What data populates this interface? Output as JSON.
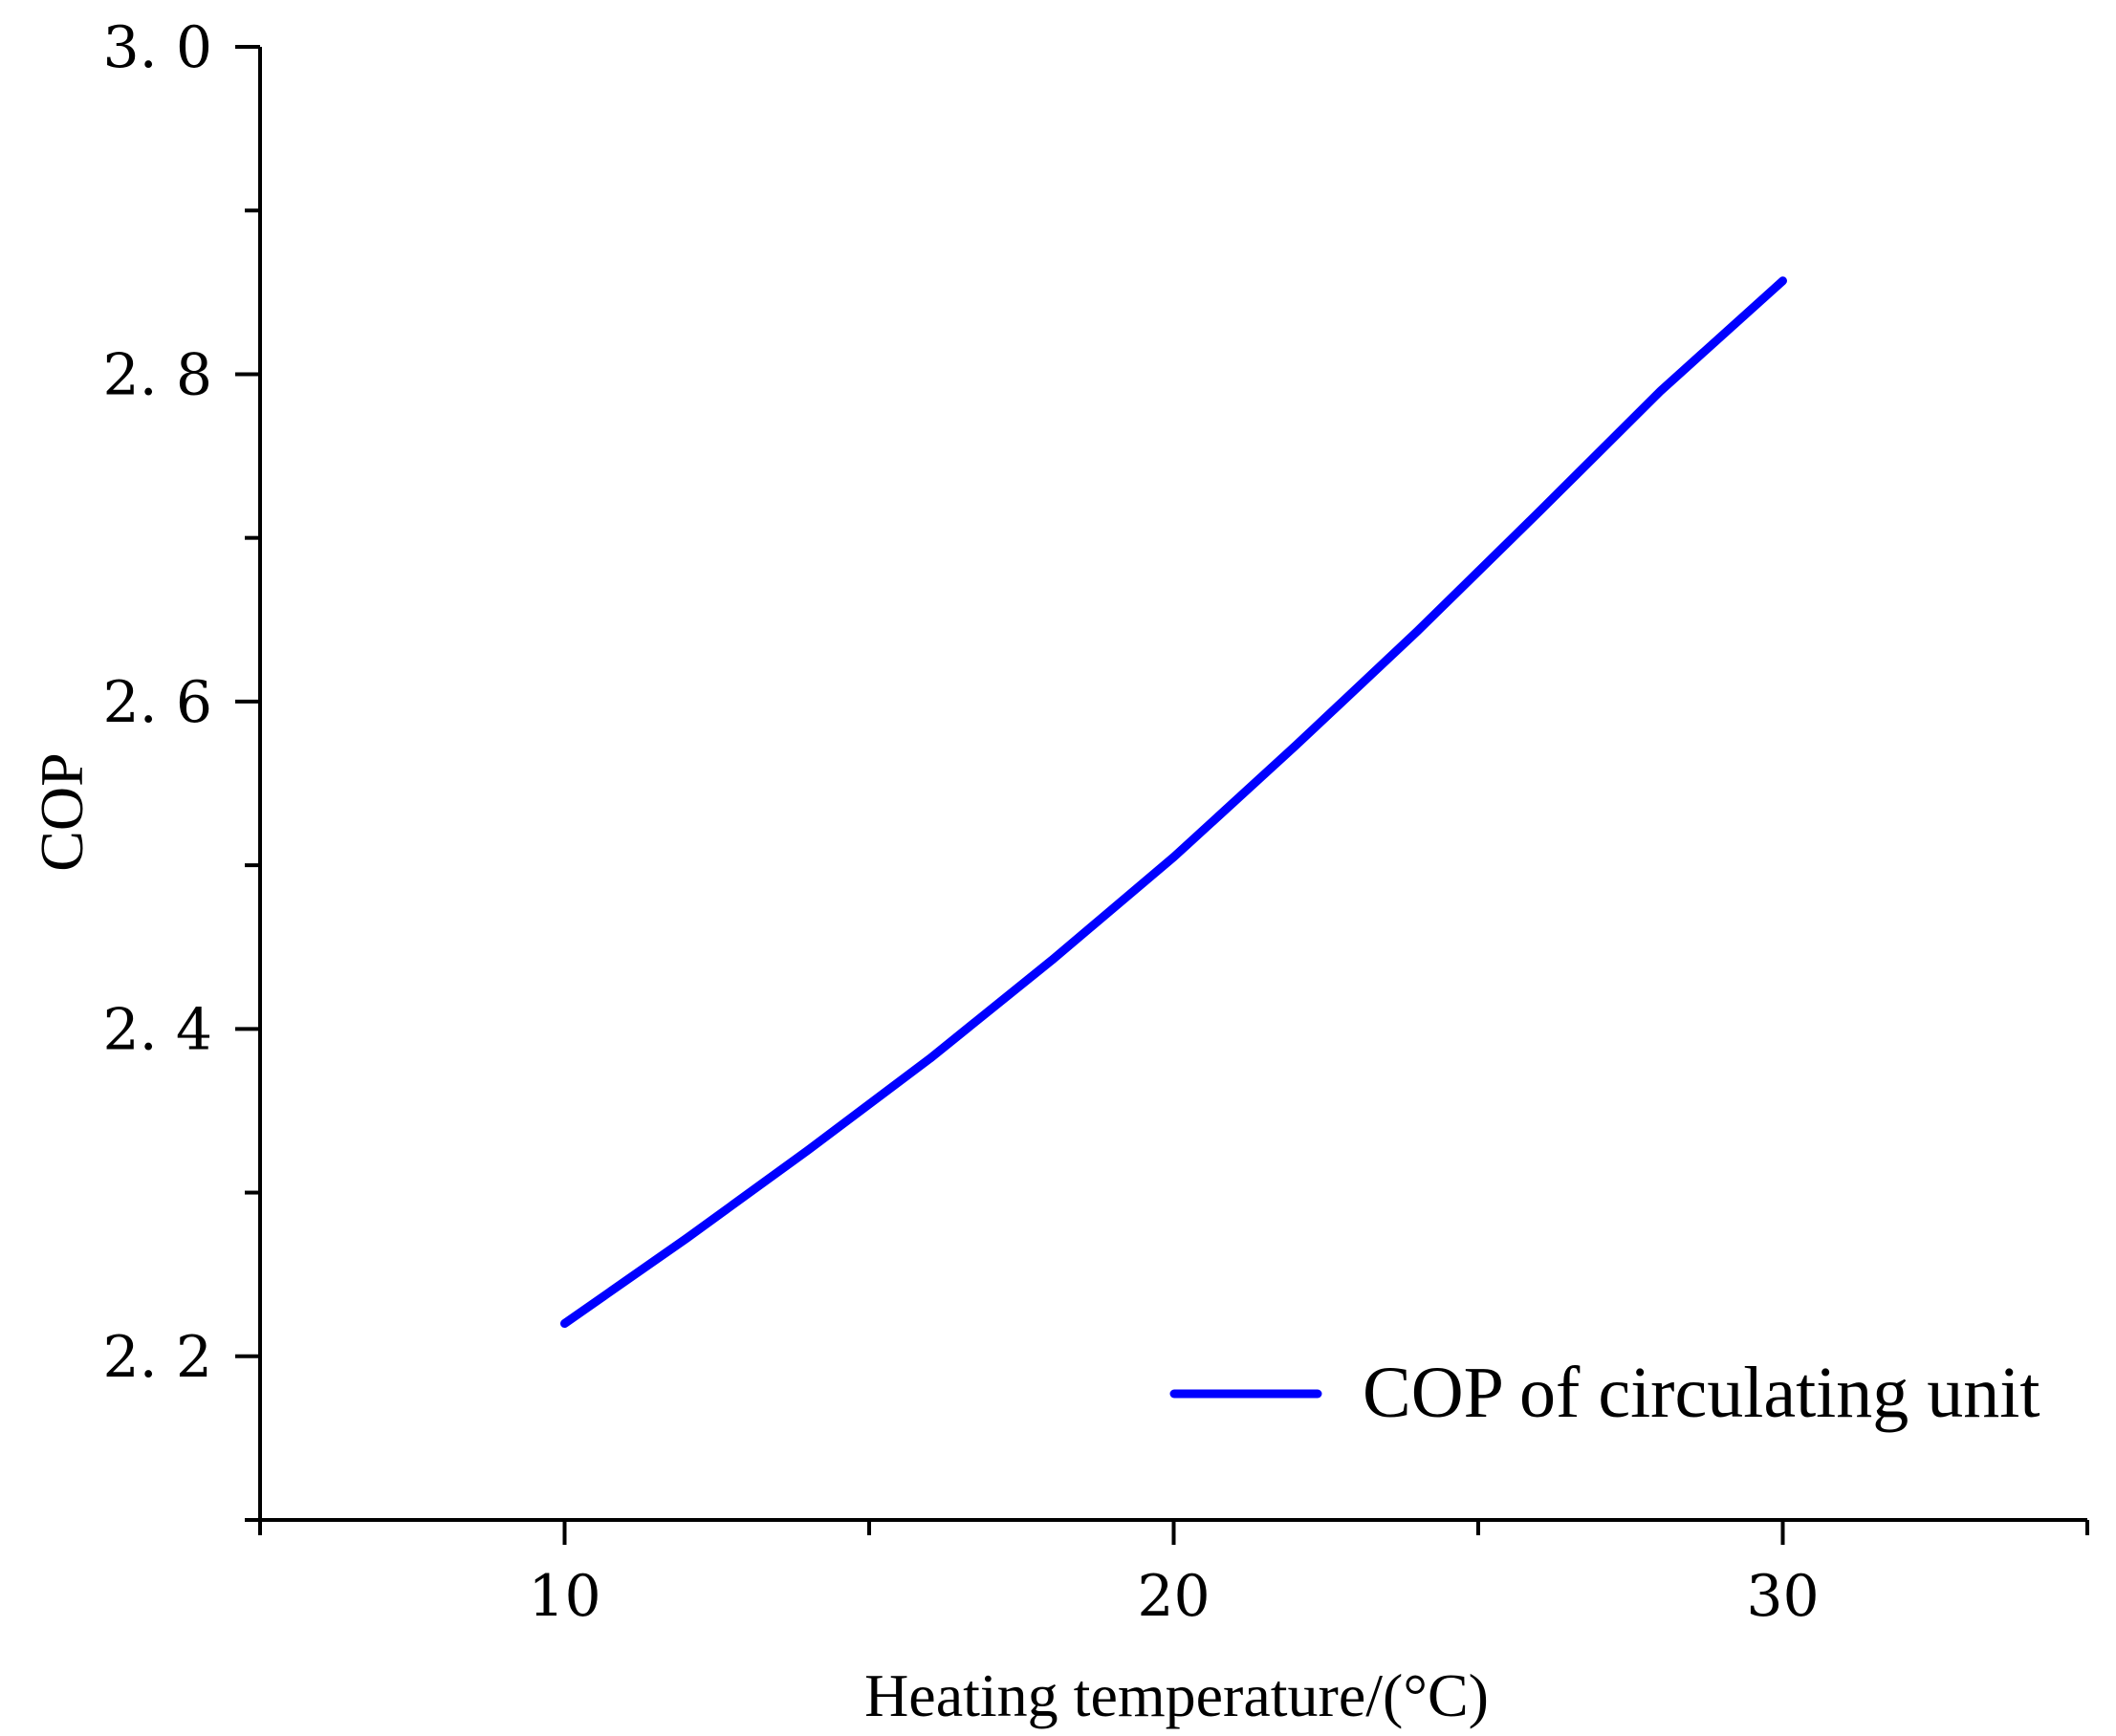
{
  "chart_data": {
    "type": "line",
    "title": "",
    "xlabel": "Heating temperature/(°C)",
    "ylabel": "COP",
    "xlim": [
      5,
      35
    ],
    "ylim": [
      2.1,
      3.0
    ],
    "x_ticks": [
      {
        "value": 10,
        "label": "10"
      },
      {
        "value": 20,
        "label": "20"
      },
      {
        "value": 30,
        "label": "30"
      }
    ],
    "x_minor_ticks": [
      5,
      15,
      25,
      35
    ],
    "y_ticks": [
      {
        "value": 2.2,
        "label": "2. 2"
      },
      {
        "value": 2.4,
        "label": "2. 4"
      },
      {
        "value": 2.6,
        "label": "2. 6"
      },
      {
        "value": 2.8,
        "label": "2. 8"
      },
      {
        "value": 3.0,
        "label": "3. 0"
      }
    ],
    "y_minor_ticks": [
      2.1,
      2.3,
      2.5,
      2.7,
      2.9
    ],
    "grid": false,
    "legend_position": "bottom-right",
    "series": [
      {
        "name": "COP of circulating unit",
        "color": "#0000ff",
        "x": [
          10,
          12,
          14,
          16,
          18,
          20,
          22,
          24,
          26,
          28,
          30
        ],
        "y": [
          2.22,
          2.272,
          2.326,
          2.382,
          2.442,
          2.505,
          2.573,
          2.643,
          2.716,
          2.79,
          2.857
        ]
      }
    ]
  }
}
